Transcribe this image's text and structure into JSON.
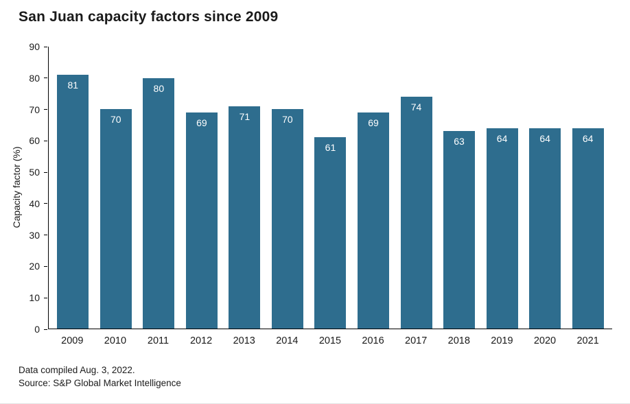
{
  "title": "San Juan capacity factors since 2009",
  "footer": {
    "line1": "Data compiled Aug. 3, 2022.",
    "line2": "Source: S&P Global Market Intelligence"
  },
  "chart_data": {
    "type": "bar",
    "title": "San Juan capacity factors since 2009",
    "categories": [
      "2009",
      "2010",
      "2011",
      "2012",
      "2013",
      "2014",
      "2015",
      "2016",
      "2017",
      "2018",
      "2019",
      "2020",
      "2021"
    ],
    "values": [
      81,
      70,
      80,
      69,
      71,
      70,
      61,
      69,
      74,
      63,
      64,
      64,
      64
    ],
    "xlabel": "",
    "ylabel": "Capacity factor (%)",
    "ylim": [
      0,
      90
    ],
    "yticks": [
      0,
      10,
      20,
      30,
      40,
      50,
      60,
      70,
      80,
      90
    ],
    "grid": false,
    "legend": false,
    "bar_color": "#2e6d8e",
    "bar_label_color": "#ffffff",
    "axis_color": "#000000"
  }
}
